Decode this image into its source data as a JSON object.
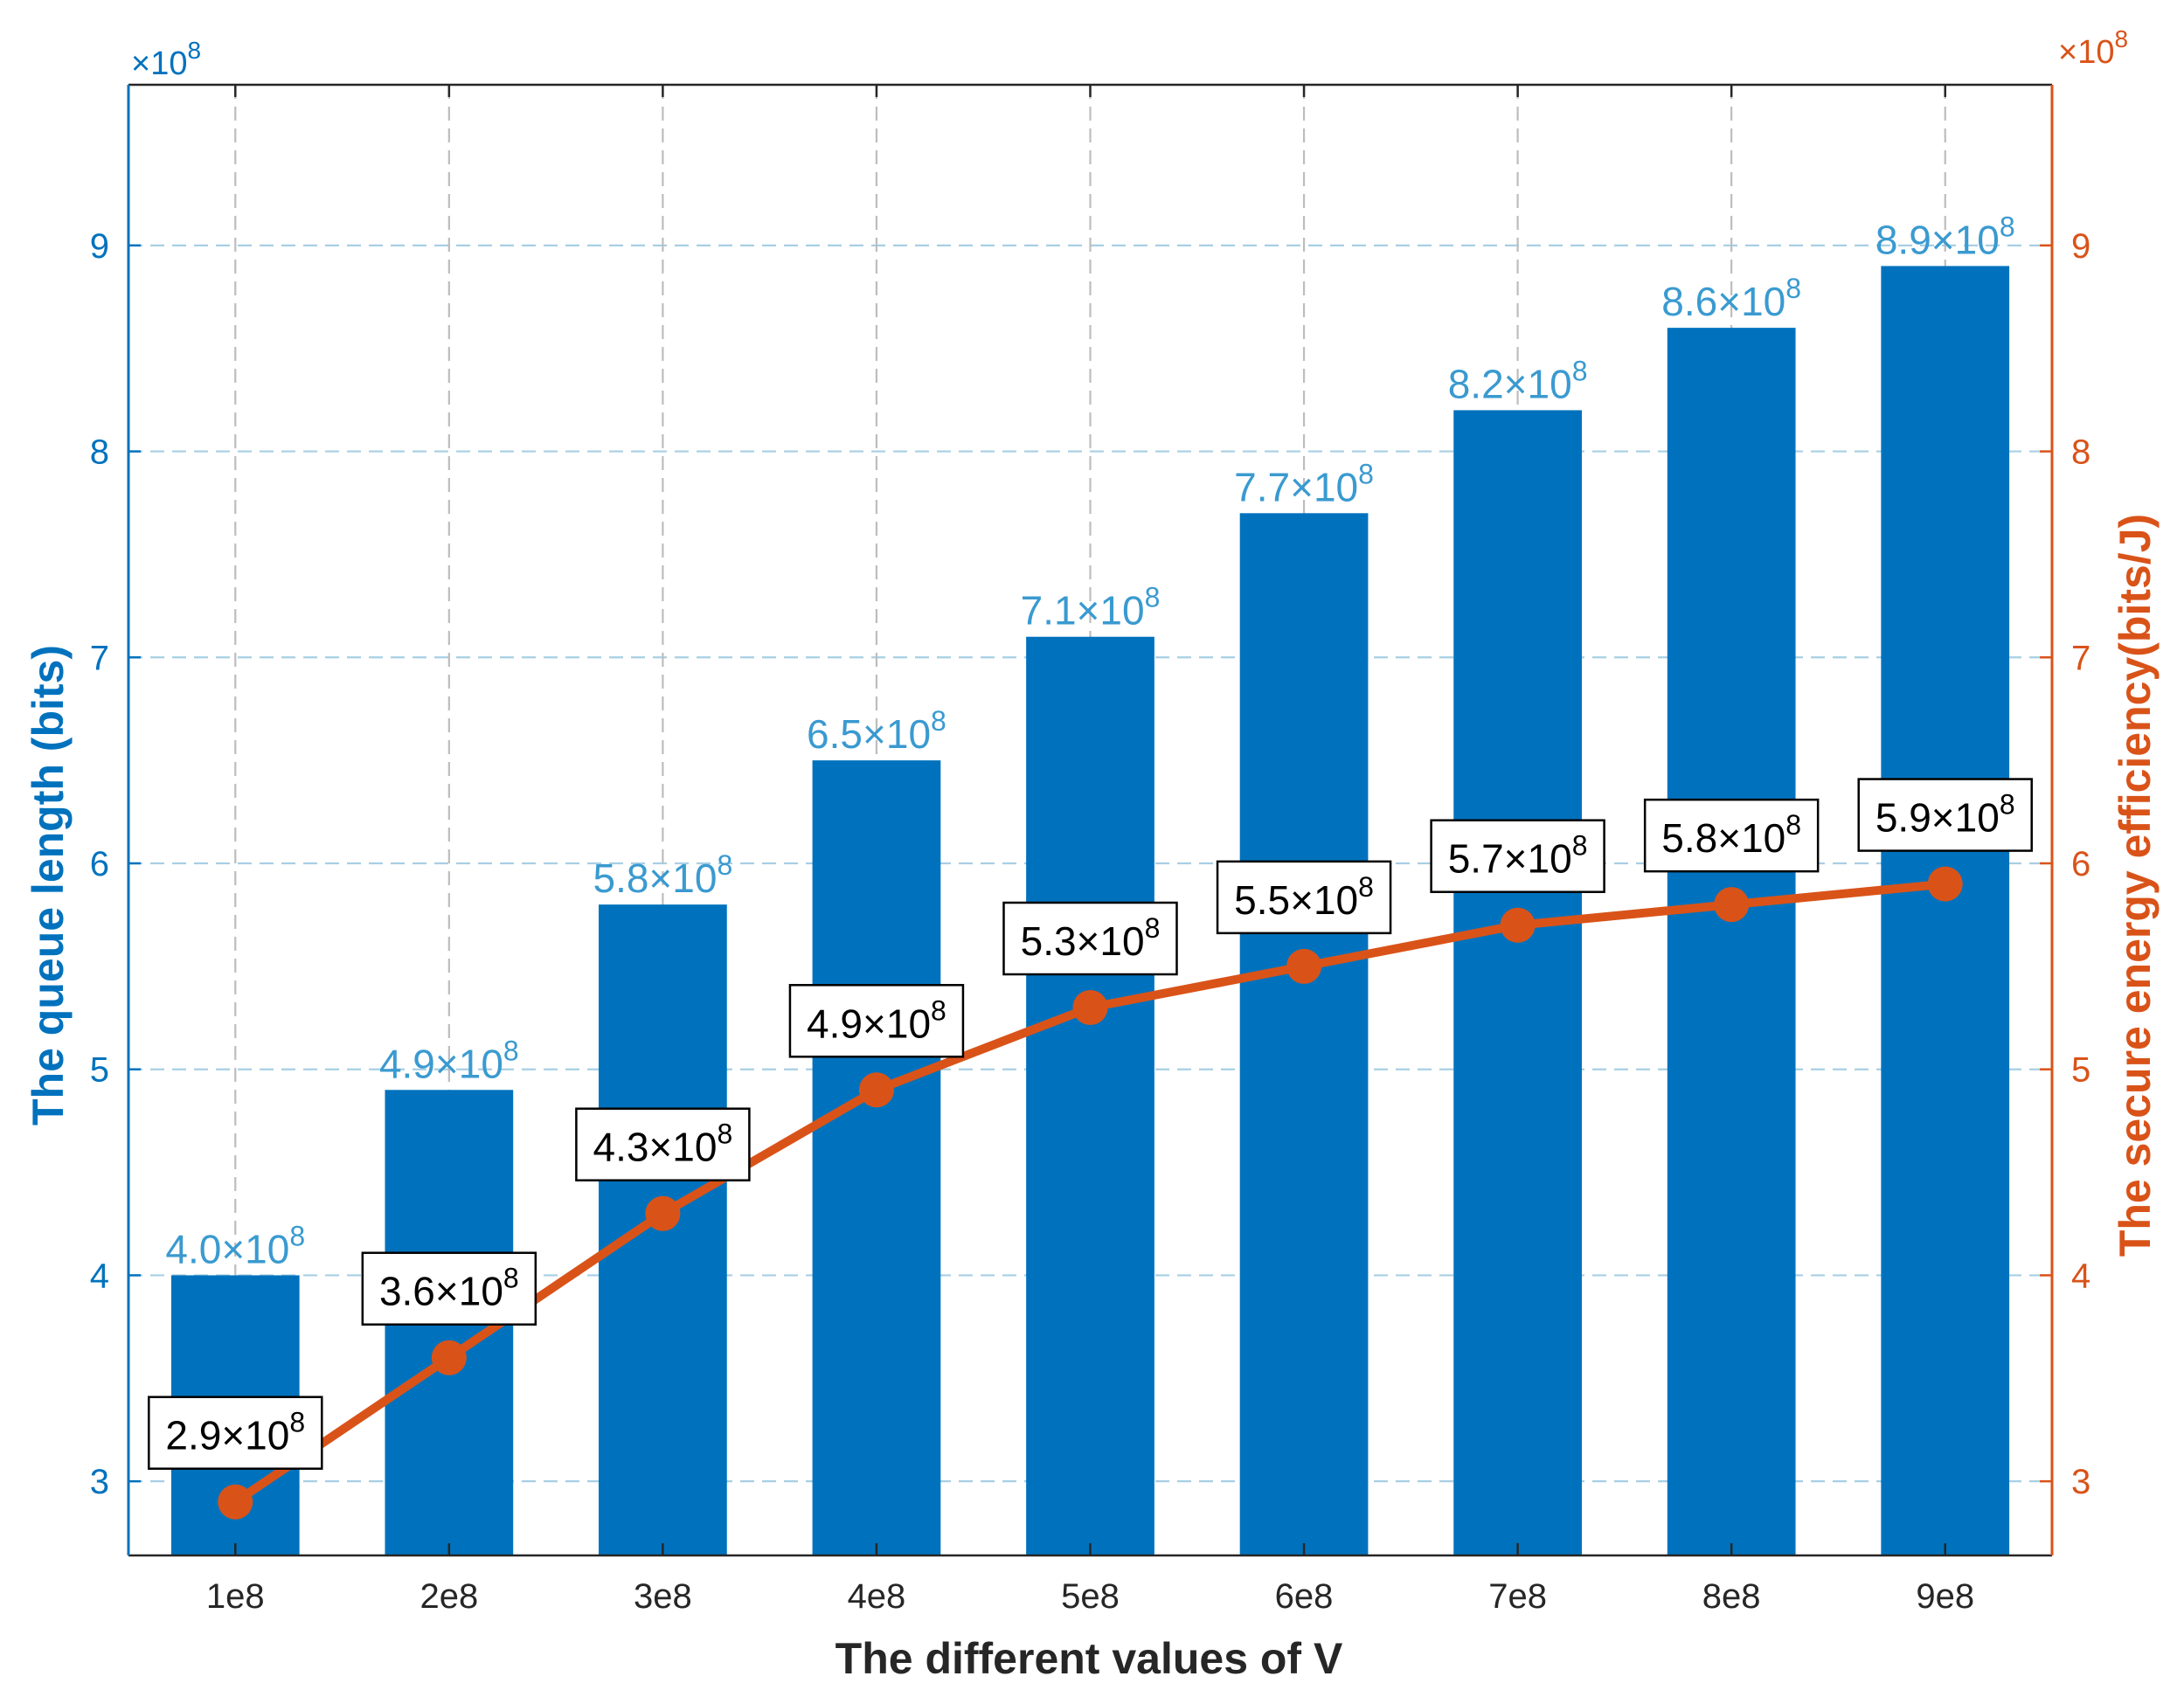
{
  "chart_data": {
    "type": "bar+line",
    "categories": [
      "1e8",
      "2e8",
      "3e8",
      "4e8",
      "5e8",
      "6e8",
      "7e8",
      "8e8",
      "9e8"
    ],
    "xlabel": "The different values of V",
    "left_axis": {
      "label": "The  queue length (bits)",
      "ylim": [
        2.64,
        9.78
      ],
      "ticks": [
        3,
        4,
        5,
        6,
        7,
        8,
        9
      ],
      "multiplier": "×10",
      "multiplier_exp": "8",
      "color": "#0072BD"
    },
    "right_axis": {
      "label": "The secure energy efficiency(bits/J)",
      "ylim": [
        2.64,
        9.78
      ],
      "ticks": [
        3,
        4,
        5,
        6,
        7,
        8,
        9
      ],
      "multiplier": "×10",
      "multiplier_exp": "8",
      "color": "#D95319"
    },
    "series": [
      {
        "name": "Queue length",
        "type": "bar",
        "axis": "left",
        "color": "#0072BD",
        "label_color": "#3A9AD0",
        "values": [
          4.0,
          4.9,
          5.8,
          6.5,
          7.1,
          7.7,
          8.2,
          8.6,
          8.9
        ],
        "labels": [
          "4.0×10",
          "4.9×10",
          "5.8×10",
          "6.5×10",
          "7.1×10",
          "7.7×10",
          "8.2×10",
          "8.6×10",
          "8.9×10"
        ],
        "label_exp": "8"
      },
      {
        "name": "Secure energy efficiency",
        "type": "line",
        "axis": "right",
        "color": "#D95319",
        "values": [
          2.9,
          3.6,
          4.3,
          4.9,
          5.3,
          5.5,
          5.7,
          5.8,
          5.9
        ],
        "labels": [
          "2.9×10",
          "3.6×10",
          "4.3×10",
          "4.9×10",
          "5.3×10",
          "5.5×10",
          "5.7×10",
          "5.8×10",
          "5.9×10"
        ],
        "label_exp": "8"
      }
    ],
    "grid": true
  }
}
